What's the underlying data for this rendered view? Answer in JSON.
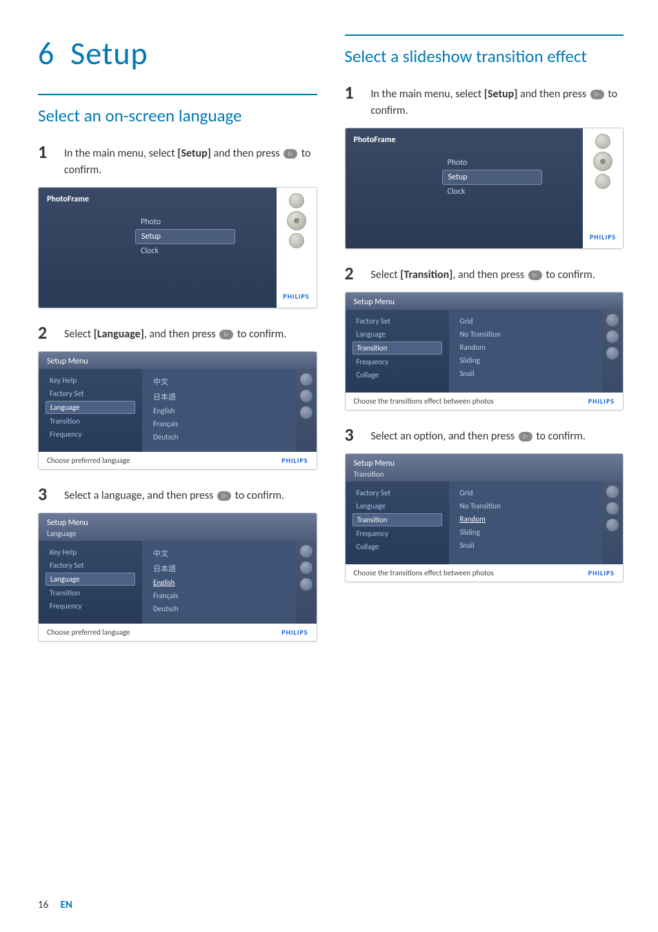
{
  "page": {
    "number": "16",
    "lang": "EN"
  },
  "chapter": {
    "num": "6",
    "title": "Setup"
  },
  "brand": "PHILIPS",
  "pf": {
    "title": "PhotoFrame",
    "items": [
      "Photo",
      "Setup",
      "Clock"
    ],
    "selectedIndex": 1
  },
  "left": {
    "heading": "Select an on-screen language",
    "steps": [
      {
        "num": "1",
        "pre": "In the main menu, select ",
        "bold": "[Setup]",
        "post": " and then press ",
        "tail": " to confirm."
      },
      {
        "num": "2",
        "pre": "Select ",
        "bold": "[Language]",
        "post": ", and then press ",
        "tail": " to confirm."
      },
      {
        "num": "3",
        "pre": "Select a language, and then press ",
        "bold": "",
        "post": "",
        "tail": " to confirm."
      }
    ],
    "sm": {
      "title": "Setup Menu",
      "footer": "Choose preferred language",
      "leftItems": [
        "Key Help",
        "Factory Set",
        "Language",
        "Transition",
        "Frequency"
      ],
      "selectedLeft": 2,
      "rightItems": [
        "中文",
        "日本語",
        "English",
        "Français",
        "Deutsch"
      ],
      "selectedRight": 2,
      "sub2": "Language"
    }
  },
  "right": {
    "heading": "Select a slideshow transition effect",
    "steps": [
      {
        "num": "1",
        "pre": "In the main menu, select ",
        "bold": "[Setup]",
        "post": " and then press ",
        "tail": " to confirm."
      },
      {
        "num": "2",
        "pre": "Select ",
        "bold": "[Transition]",
        "post": ", and then press ",
        "tail": " to confirm."
      },
      {
        "num": "3",
        "pre": "Select an option, and then press ",
        "bold": "",
        "post": "",
        "tail": " to confirm."
      }
    ],
    "sm": {
      "title": "Setup Menu",
      "footer": "Choose the transitions effect between photos",
      "leftItems": [
        "Factory Set",
        "Language",
        "Transition",
        "Frequency",
        "Collage"
      ],
      "selectedLeft": 2,
      "rightItems": [
        "Grid",
        "No Transition",
        "Random",
        "Sliding",
        "Snail"
      ],
      "selectedRight": 2,
      "sub2": "Transition"
    }
  }
}
